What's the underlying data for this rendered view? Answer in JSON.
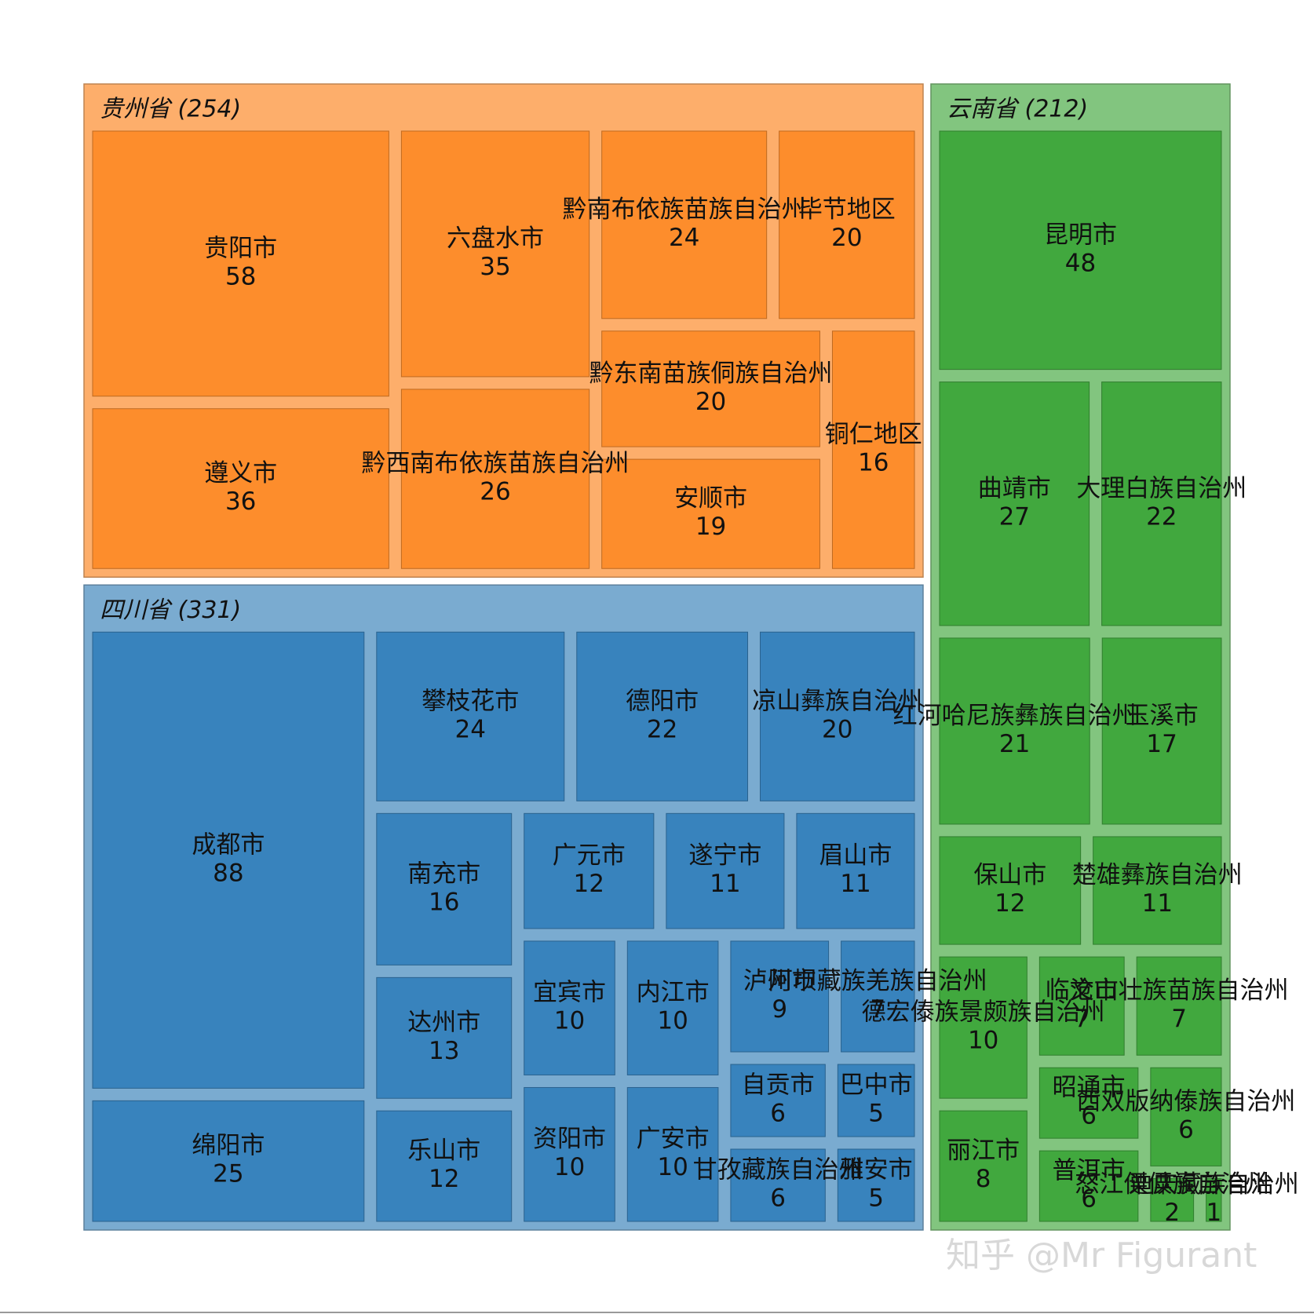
{
  "chart_data": {
    "type": "treemap",
    "watermark": "知乎 @Mr Figurant",
    "groups": [
      {
        "label": "贵州省 (254)",
        "total": 254,
        "color": "#fdae6b",
        "child_color": "#fd8d2c",
        "children": [
          {
            "name": "贵阳市",
            "value": 58
          },
          {
            "name": "遵义市",
            "value": 36
          },
          {
            "name": "六盘水市",
            "value": 35
          },
          {
            "name": "黔西南布依族苗族自治州",
            "value": 26
          },
          {
            "name": "黔南布依族苗族自治州",
            "value": 24
          },
          {
            "name": "毕节地区",
            "value": 20
          },
          {
            "name": "黔东南苗族侗族自治州",
            "value": 20
          },
          {
            "name": "安顺市",
            "value": 19
          },
          {
            "name": "铜仁地区",
            "value": 16
          }
        ]
      },
      {
        "label": "四川省 (331)",
        "total": 331,
        "color": "#7aabd0",
        "child_color": "#3883bd",
        "children": [
          {
            "name": "成都市",
            "value": 88
          },
          {
            "name": "绵阳市",
            "value": 25
          },
          {
            "name": "攀枝花市",
            "value": 24
          },
          {
            "name": "德阳市",
            "value": 22
          },
          {
            "name": "凉山彝族自治州",
            "value": 20
          },
          {
            "name": "南充市",
            "value": 16
          },
          {
            "name": "达州市",
            "value": 13
          },
          {
            "name": "乐山市",
            "value": 12
          },
          {
            "name": "广元市",
            "value": 12
          },
          {
            "name": "遂宁市",
            "value": 11
          },
          {
            "name": "眉山市",
            "value": 11
          },
          {
            "name": "宜宾市",
            "value": 10
          },
          {
            "name": "资阳市",
            "value": 10
          },
          {
            "name": "内江市",
            "value": 10
          },
          {
            "name": "广安市",
            "value": 10
          },
          {
            "name": "泸州市",
            "value": 9
          },
          {
            "name": "阿坝藏族羌族自治州",
            "value": 7
          },
          {
            "name": "自贡市",
            "value": 6
          },
          {
            "name": "甘孜藏族自治州",
            "value": 6
          },
          {
            "name": "巴中市",
            "value": 5
          },
          {
            "name": "雅安市",
            "value": 5
          }
        ]
      },
      {
        "label": "云南省 (212)",
        "total": 212,
        "color": "#82c57f",
        "child_color": "#41a83e",
        "children": [
          {
            "name": "昆明市",
            "value": 48
          },
          {
            "name": "曲靖市",
            "value": 27
          },
          {
            "name": "大理白族自治州",
            "value": 22
          },
          {
            "name": "红河哈尼族彝族自治州",
            "value": 21
          },
          {
            "name": "玉溪市",
            "value": 17
          },
          {
            "name": "保山市",
            "value": 12
          },
          {
            "name": "楚雄彝族自治州",
            "value": 11
          },
          {
            "name": "德宏傣族景颇族自治州",
            "value": 10
          },
          {
            "name": "丽江市",
            "value": 8
          },
          {
            "name": "临沧市",
            "value": 7
          },
          {
            "name": "文山壮族苗族自治州",
            "value": 7
          },
          {
            "name": "昭通市",
            "value": 6
          },
          {
            "name": "普洱市",
            "value": 6
          },
          {
            "name": "西双版纳傣族自治州",
            "value": 6
          },
          {
            "name": "怒江傈僳族自治州",
            "value": 2
          },
          {
            "name": "迪庆藏族自治州",
            "value": 1
          }
        ]
      }
    ]
  }
}
